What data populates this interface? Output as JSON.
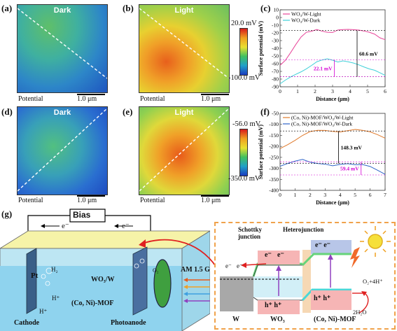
{
  "panels": {
    "a": {
      "label": "(a)",
      "title": "Dark"
    },
    "b": {
      "label": "(b)",
      "title": "Light"
    },
    "c": {
      "label": "(c)"
    },
    "d": {
      "label": "(d)",
      "title": "Dark"
    },
    "e": {
      "label": "(e)",
      "title": "Light"
    },
    "f": {
      "label": "(f)"
    },
    "g": {
      "label": "(g)"
    }
  },
  "maps": {
    "potential_label": "Potential",
    "scale_bar": "1.0 μm",
    "row1_colorbar": {
      "max": "20.0 mV",
      "min": "-100.0 mV"
    },
    "row2_colorbar": {
      "max": "-56.0 mV",
      "min": "-350.0 mV"
    }
  },
  "colors": {
    "pink": "#e8459a",
    "cyan": "#3fd0d8",
    "orange": "#e07a2c",
    "blue": "#2f64c8",
    "magenta": "#d400d4",
    "dashed_box": "#f0a24b",
    "arrow_red": "#e02020"
  },
  "chart_data": [
    {
      "type": "line",
      "panel": "c",
      "xlabel": "Distance (μm)",
      "ylabel": "Surface potential (mV)",
      "xlim": [
        0,
        6
      ],
      "ylim": [
        -90,
        10
      ],
      "xticks": [
        "0",
        "1",
        "2",
        "3",
        "4",
        "5",
        "6"
      ],
      "yticks": [
        "-90",
        "-80",
        "-70",
        "-60",
        "-50",
        "-40",
        "-30",
        "-20",
        "-10",
        "0",
        "10"
      ],
      "series": [
        {
          "name": "WO₃/W-Light",
          "color": "#e8459a",
          "x": [
            0,
            0.3,
            0.6,
            0.9,
            1.2,
            1.5,
            1.8,
            2.1,
            2.4,
            2.7,
            3.0,
            3.3,
            3.6,
            3.9,
            4.2,
            4.5,
            4.8,
            5.1,
            5.4,
            5.7,
            6.0
          ],
          "y": [
            -62,
            -55,
            -45,
            -35,
            -26,
            -20,
            -18,
            -15,
            -17,
            -19,
            -20,
            -17,
            -16,
            -15,
            -15,
            -16,
            -18,
            -20,
            -22,
            -26,
            -28
          ]
        },
        {
          "name": "WO₃/W-Dark",
          "color": "#3fd0d8",
          "x": [
            0,
            0.3,
            0.6,
            0.9,
            1.2,
            1.5,
            1.8,
            2.1,
            2.4,
            2.7,
            3.0,
            3.3,
            3.6,
            3.9,
            4.2,
            4.5,
            4.8,
            5.1,
            5.4,
            5.7,
            6.0
          ],
          "y": [
            -86,
            -82,
            -78,
            -74,
            -70,
            -66,
            -62,
            -58,
            -56,
            -54,
            -55,
            -57,
            -56,
            -58,
            -60,
            -62,
            -64,
            -66,
            -68,
            -72,
            -76
          ]
        }
      ],
      "annotations": {
        "gap_label": "60.6 mV",
        "inner_label": "22.1 mV"
      }
    },
    {
      "type": "line",
      "panel": "f",
      "xlabel": "Distance (μm)",
      "ylabel": "Surface potential (mV)",
      "xlim": [
        0,
        7
      ],
      "ylim": [
        -400,
        -50
      ],
      "xticks": [
        "0",
        "1",
        "2",
        "3",
        "4",
        "5",
        "6",
        "7"
      ],
      "yticks": [
        "-400",
        "-350",
        "-300",
        "-250",
        "-200",
        "-150",
        "-100",
        "-50"
      ],
      "series": [
        {
          "name": "(Co, Ni)-MOF/WO₃/W-Light",
          "color": "#e07a2c",
          "x": [
            0,
            0.5,
            1.0,
            1.5,
            2.0,
            2.5,
            3.0,
            3.5,
            4.0,
            4.5,
            5.0,
            5.5,
            6.0,
            6.5,
            7.0
          ],
          "y": [
            -210,
            -190,
            -170,
            -150,
            -135,
            -130,
            -128,
            -130,
            -132,
            -128,
            -125,
            -130,
            -135,
            -145,
            -160
          ]
        },
        {
          "name": "(Co, Ni)-MOF/WO₃/W-Dark",
          "color": "#2f64c8",
          "x": [
            0,
            0.5,
            1.0,
            1.5,
            2.0,
            2.5,
            3.0,
            3.5,
            4.0,
            4.5,
            5.0,
            5.5,
            6.0,
            6.5,
            7.0
          ],
          "y": [
            -290,
            -280,
            -270,
            -260,
            -270,
            -275,
            -280,
            -290,
            -285,
            -280,
            -282,
            -280,
            -290,
            -310,
            -330
          ]
        }
      ],
      "annotations": {
        "gap_label": "148.3 mV",
        "inner_label": "59.4 mV"
      }
    }
  ],
  "schematic": {
    "bias": "Bias",
    "electron_left": "e⁻",
    "electron_right": "e⁻",
    "pt": "Pt",
    "h2": "H₂",
    "h_plus_1": "H⁺",
    "h_plus_2": "H⁺",
    "cathode": "Cathode",
    "photoanode": "Photoanode",
    "o2": "O₂",
    "wo3w": "WO₃/W",
    "conimof": "(Co, Ni)-MOF",
    "am": "AM 1.5 G"
  },
  "band_diagram": {
    "schottky": "Schottky\njunction",
    "hetero": "Heterojunction",
    "e1": "e⁻",
    "e2": "e⁻",
    "e_wo3_1": "e⁻",
    "e_wo3_2": "e⁻",
    "e_mof": "e⁻ e⁻",
    "h_wo3": "h⁺ h⁺",
    "h_mof": "h⁺ h⁺",
    "o2_reaction": "O₂+4H⁺",
    "water": "2H₂O",
    "w": "W",
    "wo3": "WO₃",
    "mof": "(Co, Ni)-MOF"
  }
}
